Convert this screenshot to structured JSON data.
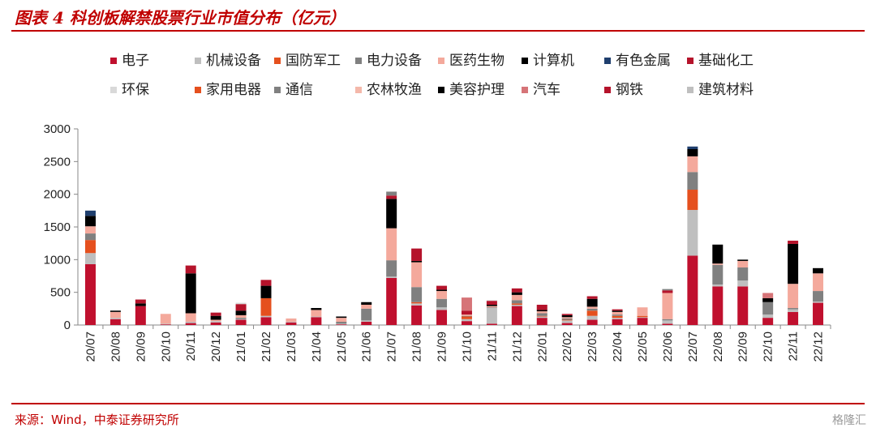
{
  "header": {
    "title": "图表 4 科创板解禁股票行业市值分布（亿元）"
  },
  "footer": {
    "source": "来源：Wind，中泰证券研究所",
    "watermark": "格隆汇"
  },
  "chart_data": {
    "type": "bar",
    "stacked": true,
    "title": "",
    "xlabel": "",
    "ylabel": "",
    "ylim": [
      0,
      3000
    ],
    "yticks": [
      0,
      500,
      1000,
      1500,
      2000,
      2500,
      3000
    ],
    "grid": false,
    "legend_position": "top",
    "categories": [
      "20/07",
      "20/08",
      "20/09",
      "20/10",
      "20/11",
      "20/12",
      "21/01",
      "21/02",
      "21/03",
      "21/04",
      "21/05",
      "21/06",
      "21/07",
      "21/08",
      "21/09",
      "21/10",
      "21/11",
      "21/12",
      "22/01",
      "22/02",
      "22/03",
      "22/04",
      "22/05",
      "22/06",
      "22/07",
      "22/08",
      "22/09",
      "22/10",
      "22/11",
      "22/12"
    ],
    "series": [
      {
        "name": "电子",
        "color": "#c0102e",
        "values": [
          930,
          90,
          290,
          10,
          30,
          40,
          80,
          120,
          40,
          120,
          10,
          50,
          720,
          300,
          230,
          60,
          20,
          290,
          110,
          30,
          80,
          90,
          110,
          20,
          1060,
          590,
          590,
          110,
          200,
          340
        ]
      },
      {
        "name": "机械设备",
        "color": "#bfbfbf",
        "values": [
          170,
          20,
          0,
          10,
          20,
          20,
          10,
          20,
          10,
          10,
          10,
          20,
          20,
          30,
          40,
          30,
          240,
          20,
          20,
          40,
          60,
          20,
          10,
          50,
          700,
          30,
          90,
          50,
          40,
          20
        ]
      },
      {
        "name": "国防军工",
        "color": "#e5501e",
        "values": [
          200,
          0,
          0,
          0,
          0,
          0,
          0,
          270,
          0,
          0,
          0,
          0,
          0,
          20,
          0,
          40,
          0,
          20,
          10,
          10,
          80,
          30,
          20,
          0,
          310,
          0,
          0,
          0,
          0,
          0
        ]
      },
      {
        "name": "电力设备",
        "color": "#808080",
        "values": [
          100,
          0,
          0,
          0,
          0,
          0,
          20,
          0,
          0,
          0,
          30,
          180,
          250,
          230,
          130,
          10,
          10,
          50,
          40,
          20,
          30,
          20,
          0,
          20,
          270,
          300,
          200,
          190,
          20,
          160
        ]
      },
      {
        "name": "医药生物",
        "color": "#f4a99c",
        "values": [
          110,
          90,
          0,
          150,
          130,
          20,
          40,
          0,
          50,
          100,
          60,
          60,
          490,
          380,
          120,
          20,
          20,
          80,
          30,
          20,
          30,
          40,
          130,
          400,
          240,
          20,
          100,
          0,
          370,
          270
        ]
      },
      {
        "name": "计算机",
        "color": "#000000",
        "values": [
          160,
          20,
          40,
          0,
          610,
          60,
          70,
          190,
          0,
          30,
          20,
          40,
          450,
          20,
          20,
          0,
          20,
          40,
          20,
          30,
          120,
          20,
          0,
          0,
          110,
          290,
          20,
          60,
          610,
          80
        ]
      },
      {
        "name": "有色金属",
        "color": "#1f3f6e",
        "values": [
          80,
          0,
          0,
          0,
          0,
          0,
          0,
          0,
          0,
          0,
          0,
          0,
          0,
          0,
          0,
          0,
          0,
          0,
          0,
          0,
          0,
          0,
          0,
          0,
          40,
          0,
          0,
          0,
          0,
          0
        ]
      },
      {
        "name": "基础化工",
        "color": "#b5132b",
        "values": [
          0,
          0,
          60,
          0,
          120,
          50,
          100,
          90,
          0,
          0,
          0,
          0,
          50,
          190,
          60,
          60,
          60,
          60,
          80,
          20,
          40,
          20,
          0,
          40,
          0,
          0,
          0,
          0,
          50,
          0
        ]
      },
      {
        "name": "环保",
        "color": "#d9d9d9",
        "values": [
          0,
          0,
          0,
          0,
          0,
          0,
          20,
          0,
          0,
          0,
          0,
          0,
          0,
          0,
          0,
          0,
          10,
          0,
          0,
          0,
          0,
          0,
          0,
          0,
          0,
          0,
          0,
          0,
          0,
          0
        ]
      },
      {
        "name": "家用电器",
        "color": "#e5501e",
        "values": [
          0,
          0,
          0,
          0,
          0,
          0,
          0,
          0,
          0,
          0,
          0,
          0,
          0,
          0,
          0,
          0,
          0,
          0,
          0,
          0,
          0,
          0,
          0,
          0,
          0,
          0,
          0,
          0,
          0,
          0
        ]
      },
      {
        "name": "通信",
        "color": "#808080",
        "values": [
          0,
          0,
          0,
          0,
          0,
          0,
          0,
          0,
          0,
          0,
          0,
          0,
          60,
          0,
          0,
          0,
          0,
          0,
          0,
          0,
          0,
          0,
          0,
          20,
          0,
          0,
          0,
          0,
          0,
          0
        ]
      },
      {
        "name": "农林牧渔",
        "color": "#f4b8aa",
        "values": [
          0,
          0,
          0,
          0,
          0,
          0,
          0,
          0,
          0,
          0,
          0,
          0,
          0,
          0,
          0,
          0,
          0,
          0,
          0,
          0,
          0,
          0,
          0,
          0,
          0,
          0,
          0,
          0,
          0,
          0
        ]
      },
      {
        "name": "美容护理",
        "color": "#000000",
        "values": [
          0,
          0,
          0,
          0,
          0,
          0,
          0,
          0,
          0,
          0,
          0,
          0,
          0,
          0,
          0,
          0,
          0,
          0,
          0,
          0,
          0,
          0,
          0,
          0,
          0,
          0,
          0,
          0,
          0,
          0
        ]
      },
      {
        "name": "汽车",
        "color": "#d67478",
        "values": [
          0,
          0,
          0,
          0,
          0,
          0,
          0,
          0,
          0,
          0,
          0,
          0,
          0,
          0,
          0,
          200,
          0,
          0,
          0,
          0,
          0,
          0,
          0,
          0,
          0,
          0,
          0,
          80,
          0,
          0
        ]
      },
      {
        "name": "钢铁",
        "color": "#b5132b",
        "values": [
          0,
          0,
          0,
          0,
          0,
          0,
          0,
          0,
          0,
          0,
          0,
          0,
          0,
          0,
          0,
          0,
          0,
          0,
          0,
          0,
          0,
          0,
          0,
          0,
          0,
          0,
          0,
          0,
          0,
          0
        ]
      },
      {
        "name": "建筑材料",
        "color": "#bfbfbf",
        "values": [
          0,
          0,
          0,
          0,
          0,
          0,
          0,
          0,
          0,
          0,
          0,
          0,
          0,
          0,
          0,
          0,
          0,
          0,
          0,
          0,
          0,
          0,
          0,
          0,
          0,
          0,
          0,
          0,
          0,
          0
        ]
      }
    ]
  }
}
